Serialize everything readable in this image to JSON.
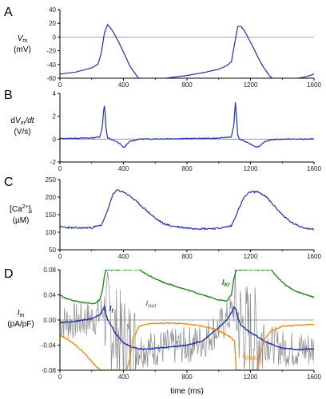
{
  "figure": {
    "xlabel": "time (ms)"
  },
  "colors": {
    "blue": "#1f2fb0",
    "green": "#1e8c1e",
    "orange": "#f08a1a",
    "gray": "#8a8a8a",
    "axis": "#000000",
    "zero": "#888888"
  },
  "chart_data": [
    {
      "type": "line",
      "panel": "A",
      "ylabel": [
        "V",
        "m",
        "(mV)"
      ],
      "xlim": [
        0,
        1600
      ],
      "ylim": [
        -60,
        40
      ],
      "xticks": [
        0,
        400,
        800,
        1200,
        1600
      ],
      "yticks": [
        -60,
        -40,
        -20,
        0,
        20,
        40
      ],
      "series": [
        {
          "name": "",
          "color": "#1f2fb0",
          "x": [
            0,
            100,
            200,
            250,
            270,
            285,
            300,
            330,
            380,
            440,
            500,
            540,
            600,
            700,
            800,
            900,
            1000,
            1050,
            1080,
            1100,
            1115,
            1130,
            1160,
            1210,
            1270,
            1330,
            1370,
            1450,
            1550,
            1600
          ],
          "y": [
            -54,
            -51,
            -45,
            -38,
            -10,
            14,
            18,
            10,
            -12,
            -42,
            -62,
            -63,
            -62,
            -59,
            -56,
            -52,
            -47,
            -42,
            -36,
            -10,
            14,
            18,
            10,
            -12,
            -40,
            -60,
            -63,
            -62,
            -58,
            -54
          ]
        }
      ]
    },
    {
      "type": "line",
      "panel": "B",
      "ylabel": [
        "dV",
        "m",
        "/dt",
        "(V/s)"
      ],
      "xlim": [
        0,
        1600
      ],
      "ylim": [
        -2,
        4
      ],
      "xticks": [
        0,
        400,
        800,
        1200,
        1600
      ],
      "yticks": [
        -2,
        0,
        2,
        4
      ],
      "series": [
        {
          "name": "",
          "color": "#1f2fb0",
          "x": [
            0,
            200,
            250,
            265,
            275,
            282,
            290,
            300,
            320,
            350,
            380,
            400,
            420,
            440,
            500,
            600,
            800,
            1000,
            1080,
            1095,
            1105,
            1112,
            1120,
            1130,
            1150,
            1180,
            1210,
            1240,
            1260,
            1280,
            1330,
            1400,
            1600
          ],
          "y": [
            0.05,
            0.1,
            0.2,
            0.9,
            2.5,
            3.1,
            1.0,
            0.1,
            0.0,
            -0.2,
            -0.4,
            -0.75,
            -0.5,
            -0.2,
            0.0,
            0.02,
            0.05,
            0.08,
            0.2,
            1.2,
            3.2,
            2.0,
            0.3,
            0.0,
            -0.1,
            -0.3,
            -0.5,
            -0.7,
            -0.6,
            -0.3,
            -0.05,
            0.0,
            0.0
          ]
        }
      ]
    },
    {
      "type": "line",
      "panel": "C",
      "ylabel": [
        "[Ca",
        "2+",
        "]",
        "i",
        "(µM)"
      ],
      "xlim": [
        0,
        1600
      ],
      "ylim": [
        50,
        250
      ],
      "xticks": [
        0,
        400,
        800,
        1200,
        1600
      ],
      "yticks": [
        50,
        100,
        150,
        200,
        250
      ],
      "series": [
        {
          "name": "",
          "color": "#1f2fb0",
          "x": [
            0,
            100,
            200,
            260,
            300,
            330,
            360,
            400,
            450,
            500,
            550,
            600,
            650,
            700,
            800,
            900,
            1000,
            1080,
            1120,
            1160,
            1200,
            1250,
            1300,
            1350,
            1400,
            1450,
            1500,
            1550,
            1600
          ],
          "y": [
            115,
            112,
            113,
            120,
            160,
            205,
            220,
            215,
            200,
            180,
            160,
            140,
            125,
            118,
            112,
            110,
            111,
            118,
            160,
            200,
            215,
            215,
            200,
            175,
            150,
            130,
            118,
            112,
            108
          ]
        }
      ]
    },
    {
      "type": "line",
      "panel": "D",
      "ylabel": [
        "I",
        "m",
        "(pA/pF)"
      ],
      "xlim": [
        0,
        1600
      ],
      "ylim": [
        -0.08,
        0.08
      ],
      "xticks": [
        0,
        400,
        800,
        1200,
        1600
      ],
      "yticks": [
        -0.08,
        -0.04,
        0.0,
        0.04,
        0.08
      ],
      "ytick_labels": [
        "-0.08",
        "-0.04",
        "0.00",
        "0.04",
        "0.08"
      ],
      "annotations": [
        {
          "text": "I",
          "sub": "Kr",
          "series": "IKr",
          "x": 1020,
          "y": 0.056
        },
        {
          "text": "I",
          "sub": "f",
          "series": "If",
          "x": 310,
          "y": 0.014
        },
        {
          "text": "I",
          "sub": "net",
          "series": "Inet",
          "x": 540,
          "y": 0.022
        },
        {
          "text": "I",
          "sub": "Ca,L",
          "series": "ICaL",
          "x": 1150,
          "y": -0.06
        }
      ],
      "series": [
        {
          "name": "IKr",
          "color": "#1e8c1e",
          "x": [
            0,
            40,
            100,
            160,
            220,
            250,
            270,
            280,
            290,
            500,
            550,
            600,
            650,
            700,
            800,
            900,
            1000,
            1050,
            1080,
            1095,
            1110,
            1330,
            1370,
            1420,
            1480,
            1550,
            1600
          ],
          "y": [
            0.04,
            0.034,
            0.03,
            0.027,
            0.026,
            0.032,
            0.05,
            0.07,
            0.08,
            0.08,
            0.072,
            0.066,
            0.06,
            0.056,
            0.048,
            0.04,
            0.032,
            0.03,
            0.04,
            0.065,
            0.08,
            0.08,
            0.068,
            0.056,
            0.046,
            0.04,
            0.036
          ]
        },
        {
          "name": "If",
          "color": "#1f2fb0",
          "x": [
            0,
            100,
            200,
            250,
            265,
            280,
            290,
            300,
            330,
            350,
            400,
            450,
            500,
            550,
            600,
            700,
            800,
            900,
            1000,
            1050,
            1080,
            1095,
            1110,
            1120,
            1140,
            1200,
            1300,
            1400,
            1500,
            1600
          ],
          "y": [
            -0.004,
            -0.002,
            0.002,
            0.008,
            0.014,
            0.022,
            0.01,
            0.001,
            -0.012,
            -0.022,
            -0.036,
            -0.043,
            -0.046,
            -0.046,
            -0.045,
            -0.043,
            -0.04,
            -0.033,
            -0.012,
            0.0,
            0.012,
            0.02,
            0.016,
            0.003,
            -0.008,
            -0.02,
            -0.035,
            -0.045,
            -0.047,
            -0.046
          ]
        },
        {
          "name": "ICaL",
          "color": "#f08a1a",
          "x": [
            0,
            30,
            80,
            130,
            170,
            200,
            230,
            260,
            280,
            290,
            420,
            440,
            460,
            500,
            560,
            700,
            800,
            900,
            980,
            1040,
            1080,
            1100,
            1110,
            1240,
            1260,
            1290,
            1330,
            1400,
            1500,
            1600
          ],
          "y": [
            -0.025,
            -0.028,
            -0.036,
            -0.047,
            -0.057,
            -0.066,
            -0.075,
            -0.08,
            -0.08,
            -0.08,
            -0.08,
            -0.062,
            -0.03,
            -0.01,
            -0.006,
            -0.005,
            -0.006,
            -0.01,
            -0.015,
            -0.022,
            -0.028,
            -0.034,
            -0.08,
            -0.08,
            -0.055,
            -0.03,
            -0.018,
            -0.01,
            -0.008,
            -0.007
          ]
        }
      ]
    }
  ]
}
